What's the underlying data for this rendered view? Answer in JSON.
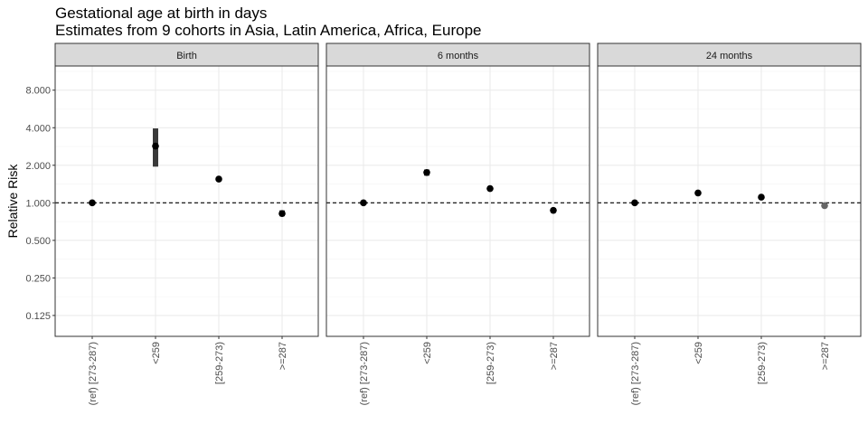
{
  "title": "Gestational age at birth in days",
  "subtitle": "Estimates from 9 cohorts in Asia, Latin America, Africa, Europe",
  "chart_data": {
    "type": "scatter",
    "title": "Gestational age at birth in days",
    "subtitle": "Estimates from 9 cohorts in Asia, Latin America, Africa, Europe",
    "ylabel": "Relative Risk",
    "xlabel": "",
    "y_scale": "log2",
    "ylim": [
      0.085,
      12.5
    ],
    "yticks": [
      0.125,
      0.25,
      0.5,
      1,
      2,
      4,
      8
    ],
    "ytick_labels": [
      "0.125",
      "0.250",
      "0.500",
      "1.000",
      "2.000",
      "4.000",
      "8.000"
    ],
    "reference_line": 1,
    "grid": true,
    "categories": [
      "(ref) [273-287)",
      "<259",
      "[259-273)",
      ">=287"
    ],
    "panels": [
      {
        "name": "Birth",
        "points": [
          {
            "category": "(ref) [273-287)",
            "rr": 1.0,
            "lower": 1.0,
            "upper": 1.0,
            "color": "#000000"
          },
          {
            "category": "<259",
            "rr": 2.85,
            "lower": 1.95,
            "upper": 3.95,
            "color": "#000000"
          },
          {
            "category": "[259-273)",
            "rr": 1.55,
            "lower": 1.5,
            "upper": 1.6,
            "color": "#000000"
          },
          {
            "category": ">=287",
            "rr": 0.82,
            "lower": 0.78,
            "upper": 0.87,
            "color": "#000000"
          }
        ]
      },
      {
        "name": "6 months",
        "points": [
          {
            "category": "(ref) [273-287)",
            "rr": 1.0,
            "lower": 1.0,
            "upper": 1.0,
            "color": "#000000"
          },
          {
            "category": "<259",
            "rr": 1.75,
            "lower": 1.65,
            "upper": 1.85,
            "color": "#000000"
          },
          {
            "category": "[259-273)",
            "rr": 1.3,
            "lower": 1.26,
            "upper": 1.34,
            "color": "#000000"
          },
          {
            "category": ">=287",
            "rr": 0.87,
            "lower": 0.83,
            "upper": 0.91,
            "color": "#000000"
          }
        ]
      },
      {
        "name": "24 months",
        "points": [
          {
            "category": "(ref) [273-287)",
            "rr": 1.0,
            "lower": 1.0,
            "upper": 1.0,
            "color": "#000000"
          },
          {
            "category": "<259",
            "rr": 1.2,
            "lower": 1.18,
            "upper": 1.22,
            "color": "#000000"
          },
          {
            "category": "[259-273)",
            "rr": 1.11,
            "lower": 1.09,
            "upper": 1.13,
            "color": "#000000"
          },
          {
            "category": ">=287",
            "rr": 0.95,
            "lower": 0.95,
            "upper": 0.95,
            "color": "#666666"
          }
        ]
      }
    ],
    "colors": {
      "strip_fill": "#d9d9d9",
      "strip_border": "#333333",
      "panel_border": "#333333",
      "grid_major": "#ebebeb",
      "grid_minor": "#f4f4f4",
      "errorbar": "#3a3a3a"
    }
  }
}
